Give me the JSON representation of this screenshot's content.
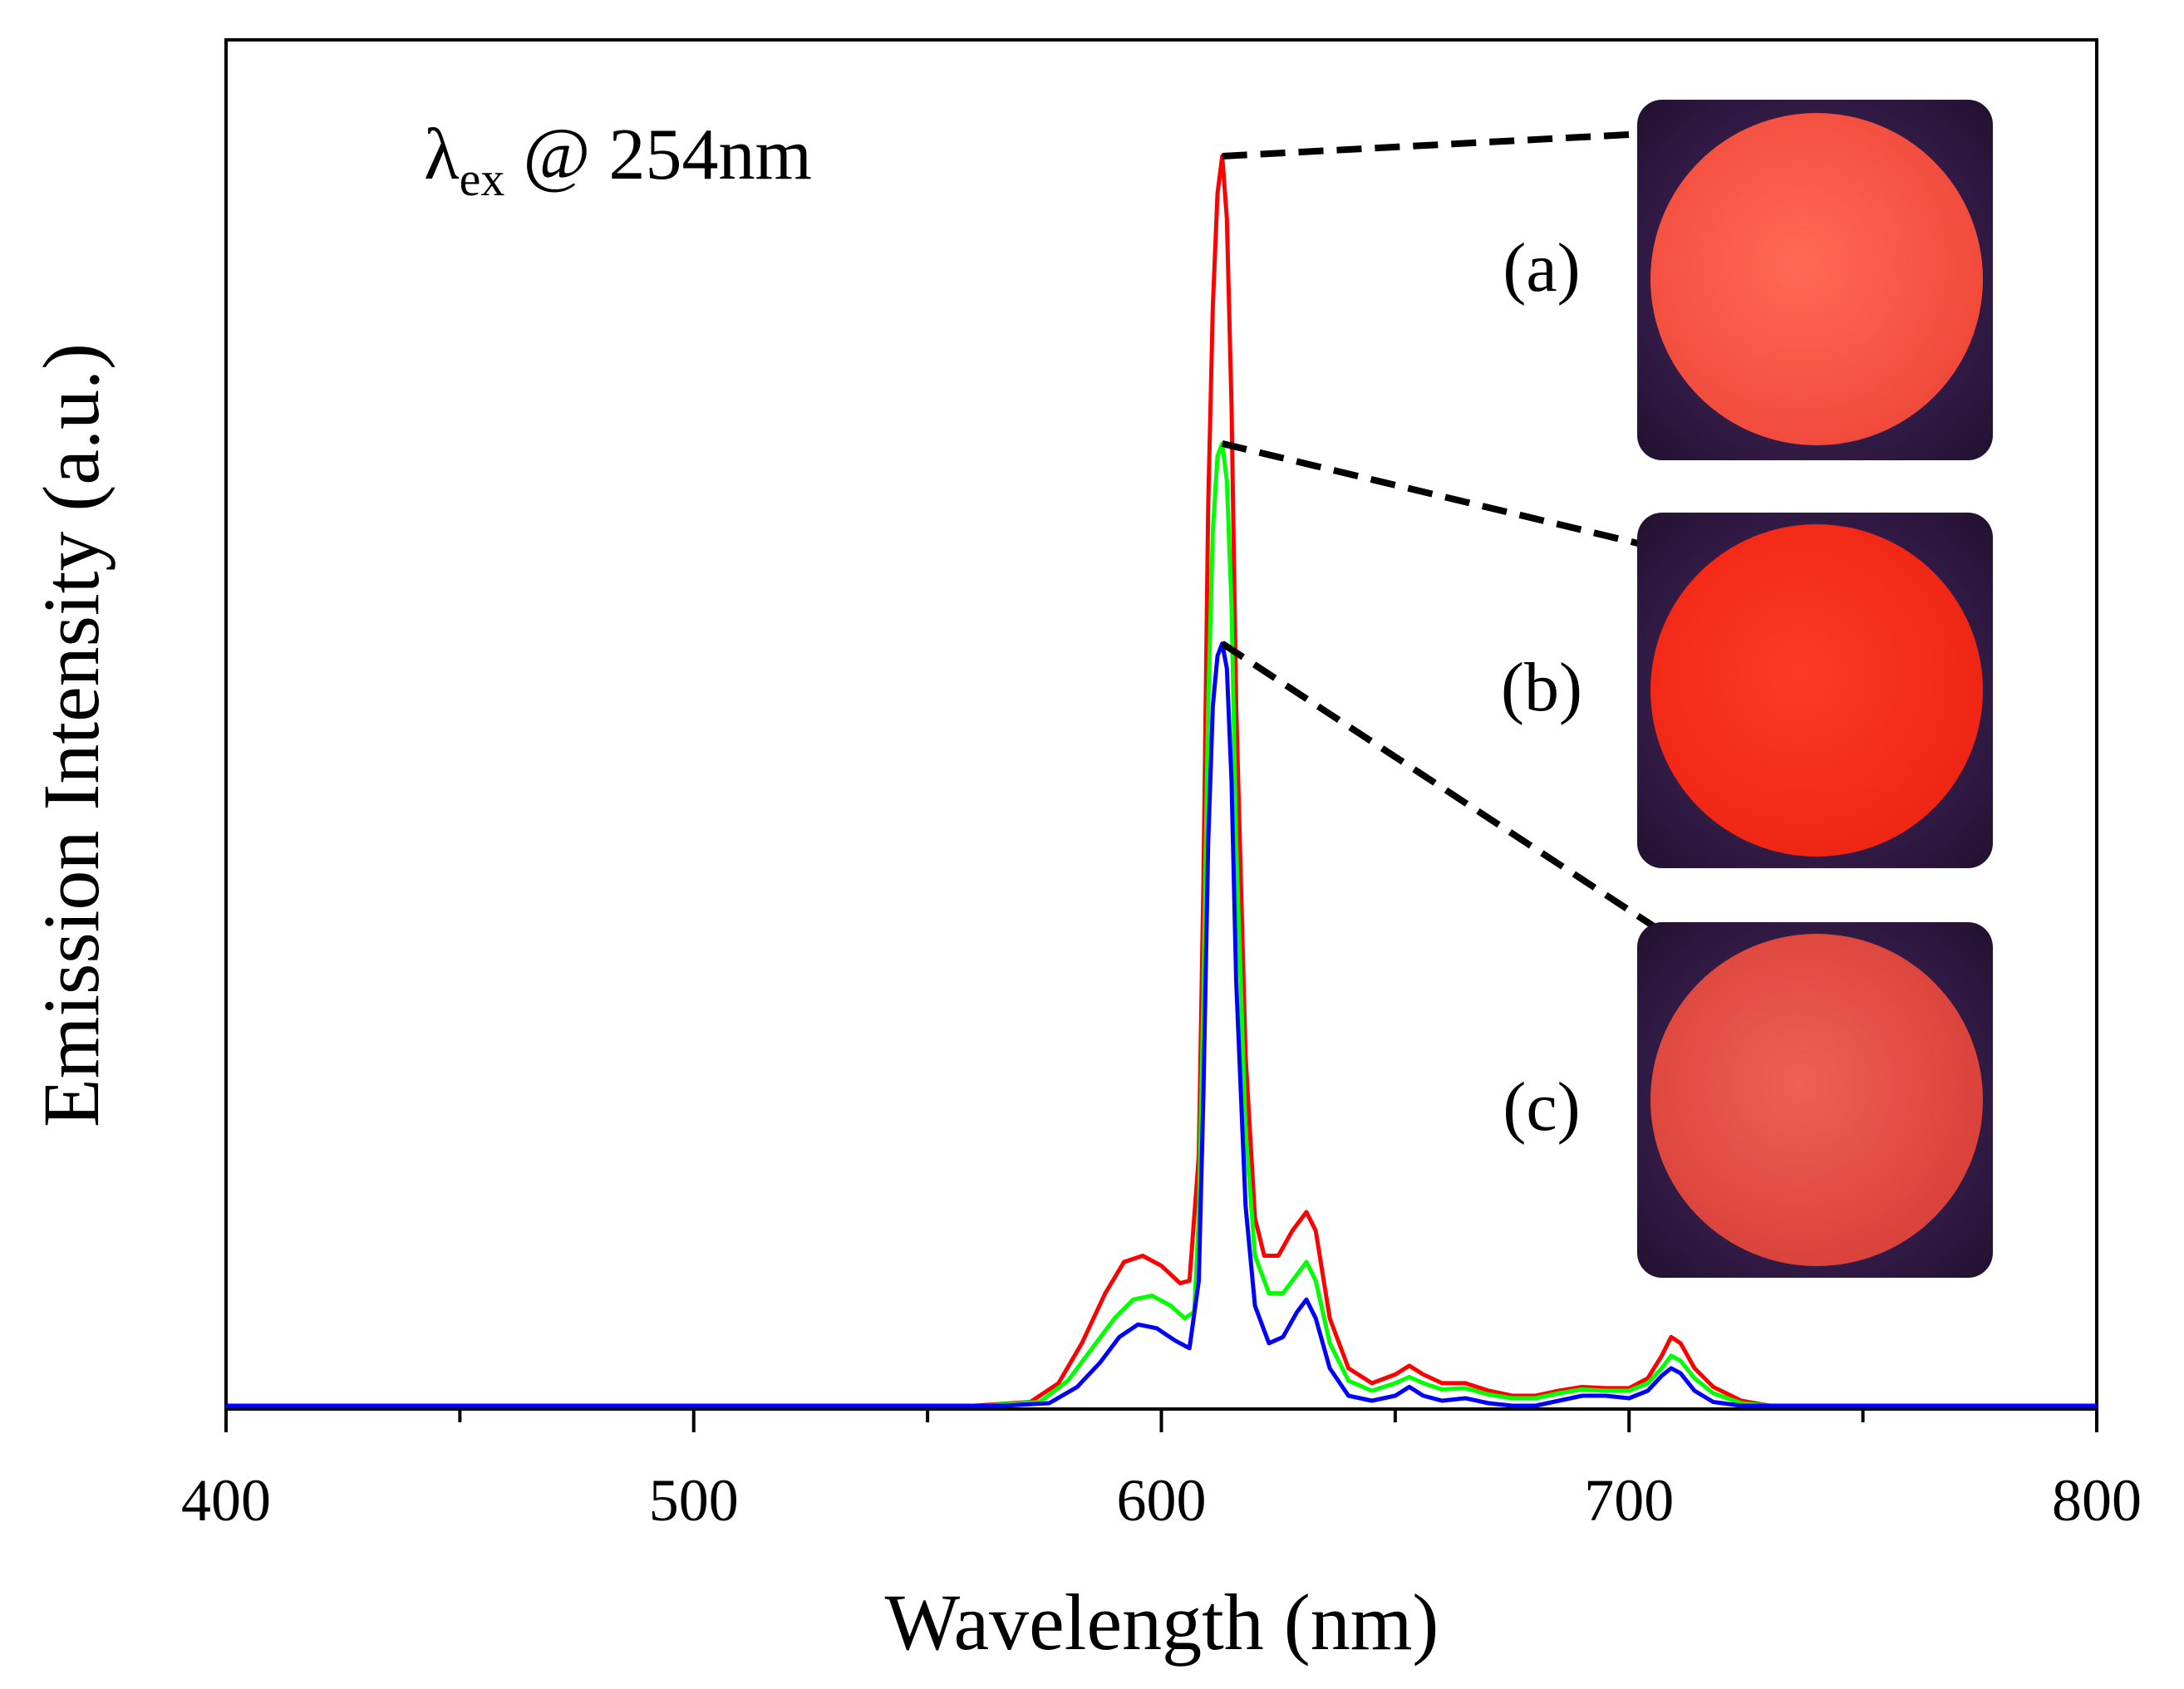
{
  "chart_data": {
    "type": "line",
    "title": "",
    "annotation": {
      "symbol": "λ",
      "subscript": "ex",
      "text": " @ 254nm"
    },
    "xlabel": "Wavelength (nm)",
    "ylabel": "Emission Intensity (a.u.)",
    "xlim": [
      400,
      800
    ],
    "ylim": [
      0,
      1.0
    ],
    "xticks": [
      400,
      500,
      600,
      700,
      800
    ],
    "xtick_labels": [
      "400",
      "500",
      "600",
      "700",
      "800"
    ],
    "y_tick_labels_shown": false,
    "series": [
      {
        "name": "(a)",
        "color": "#ff0000",
        "points": [
          [
            400,
            0
          ],
          [
            560,
            0
          ],
          [
            572,
            0.003
          ],
          [
            578,
            0.018
          ],
          [
            583,
            0.05
          ],
          [
            588,
            0.09
          ],
          [
            592,
            0.115
          ],
          [
            596,
            0.12
          ],
          [
            600,
            0.112
          ],
          [
            604,
            0.098
          ],
          [
            606,
            0.1
          ],
          [
            608,
            0.2
          ],
          [
            609,
            0.42
          ],
          [
            610,
            0.72
          ],
          [
            611,
            0.88
          ],
          [
            612,
            0.97
          ],
          [
            613,
            1.0
          ],
          [
            614,
            0.95
          ],
          [
            615,
            0.8
          ],
          [
            616,
            0.56
          ],
          [
            618,
            0.28
          ],
          [
            620,
            0.15
          ],
          [
            622,
            0.12
          ],
          [
            625,
            0.12
          ],
          [
            628,
            0.14
          ],
          [
            631,
            0.155
          ],
          [
            633,
            0.14
          ],
          [
            636,
            0.07
          ],
          [
            640,
            0.03
          ],
          [
            645,
            0.018
          ],
          [
            650,
            0.025
          ],
          [
            653,
            0.032
          ],
          [
            656,
            0.025
          ],
          [
            660,
            0.018
          ],
          [
            665,
            0.018
          ],
          [
            670,
            0.012
          ],
          [
            675,
            0.008
          ],
          [
            680,
            0.008
          ],
          [
            685,
            0.012
          ],
          [
            690,
            0.015
          ],
          [
            695,
            0.014
          ],
          [
            700,
            0.014
          ],
          [
            704,
            0.022
          ],
          [
            707,
            0.04
          ],
          [
            709,
            0.055
          ],
          [
            711,
            0.05
          ],
          [
            714,
            0.03
          ],
          [
            718,
            0.015
          ],
          [
            724,
            0.004
          ],
          [
            730,
            0
          ],
          [
            800,
            0
          ]
        ]
      },
      {
        "name": "(b)",
        "color": "#00ff00",
        "points": [
          [
            400,
            0
          ],
          [
            562,
            0
          ],
          [
            574,
            0.003
          ],
          [
            580,
            0.02
          ],
          [
            585,
            0.045
          ],
          [
            590,
            0.07
          ],
          [
            594,
            0.085
          ],
          [
            598,
            0.088
          ],
          [
            602,
            0.08
          ],
          [
            605,
            0.07
          ],
          [
            607,
            0.075
          ],
          [
            608,
            0.15
          ],
          [
            609,
            0.33
          ],
          [
            610,
            0.56
          ],
          [
            611,
            0.7
          ],
          [
            612,
            0.76
          ],
          [
            613,
            0.77
          ],
          [
            614,
            0.74
          ],
          [
            615,
            0.64
          ],
          [
            616,
            0.45
          ],
          [
            618,
            0.22
          ],
          [
            620,
            0.12
          ],
          [
            623,
            0.09
          ],
          [
            626,
            0.09
          ],
          [
            629,
            0.105
          ],
          [
            631,
            0.115
          ],
          [
            633,
            0.1
          ],
          [
            636,
            0.05
          ],
          [
            640,
            0.02
          ],
          [
            645,
            0.012
          ],
          [
            650,
            0.018
          ],
          [
            653,
            0.023
          ],
          [
            656,
            0.018
          ],
          [
            660,
            0.013
          ],
          [
            665,
            0.014
          ],
          [
            670,
            0.009
          ],
          [
            675,
            0.006
          ],
          [
            680,
            0.006
          ],
          [
            685,
            0.01
          ],
          [
            690,
            0.013
          ],
          [
            695,
            0.012
          ],
          [
            700,
            0.012
          ],
          [
            704,
            0.018
          ],
          [
            707,
            0.03
          ],
          [
            709,
            0.04
          ],
          [
            711,
            0.036
          ],
          [
            714,
            0.022
          ],
          [
            718,
            0.01
          ],
          [
            724,
            0.002
          ],
          [
            730,
            0
          ],
          [
            800,
            0
          ]
        ]
      },
      {
        "name": "(c)",
        "color": "#0000ff",
        "points": [
          [
            400,
            0
          ],
          [
            566,
            0
          ],
          [
            576,
            0.002
          ],
          [
            582,
            0.015
          ],
          [
            587,
            0.035
          ],
          [
            591,
            0.055
          ],
          [
            595,
            0.065
          ],
          [
            599,
            0.062
          ],
          [
            603,
            0.052
          ],
          [
            606,
            0.046
          ],
          [
            608,
            0.1
          ],
          [
            609,
            0.25
          ],
          [
            610,
            0.45
          ],
          [
            611,
            0.56
          ],
          [
            612,
            0.6
          ],
          [
            613,
            0.61
          ],
          [
            614,
            0.59
          ],
          [
            615,
            0.5
          ],
          [
            616,
            0.34
          ],
          [
            618,
            0.16
          ],
          [
            620,
            0.08
          ],
          [
            623,
            0.05
          ],
          [
            626,
            0.055
          ],
          [
            629,
            0.075
          ],
          [
            631,
            0.085
          ],
          [
            633,
            0.07
          ],
          [
            636,
            0.03
          ],
          [
            640,
            0.008
          ],
          [
            645,
            0.004
          ],
          [
            650,
            0.008
          ],
          [
            653,
            0.015
          ],
          [
            656,
            0.008
          ],
          [
            660,
            0.004
          ],
          [
            665,
            0.006
          ],
          [
            670,
            0.002
          ],
          [
            675,
            0
          ],
          [
            680,
            0
          ],
          [
            685,
            0.004
          ],
          [
            690,
            0.008
          ],
          [
            695,
            0.008
          ],
          [
            700,
            0.006
          ],
          [
            704,
            0.012
          ],
          [
            707,
            0.024
          ],
          [
            709,
            0.03
          ],
          [
            711,
            0.026
          ],
          [
            714,
            0.012
          ],
          [
            718,
            0.003
          ],
          [
            724,
            0
          ],
          [
            800,
            0
          ]
        ]
      }
    ],
    "insets": [
      {
        "label": "(a)",
        "series": "(a)",
        "peak_wavelength": 613
      },
      {
        "label": "(b)",
        "series": "(b)",
        "peak_wavelength": 613
      },
      {
        "label": "(c)",
        "series": "(c)",
        "peak_wavelength": 613
      }
    ]
  },
  "colors": {
    "photo_background": "#3a1f4a",
    "disc_a": "#ff5a45",
    "disc_b": "#ff2a1a",
    "disc_c": "#e84a45"
  }
}
